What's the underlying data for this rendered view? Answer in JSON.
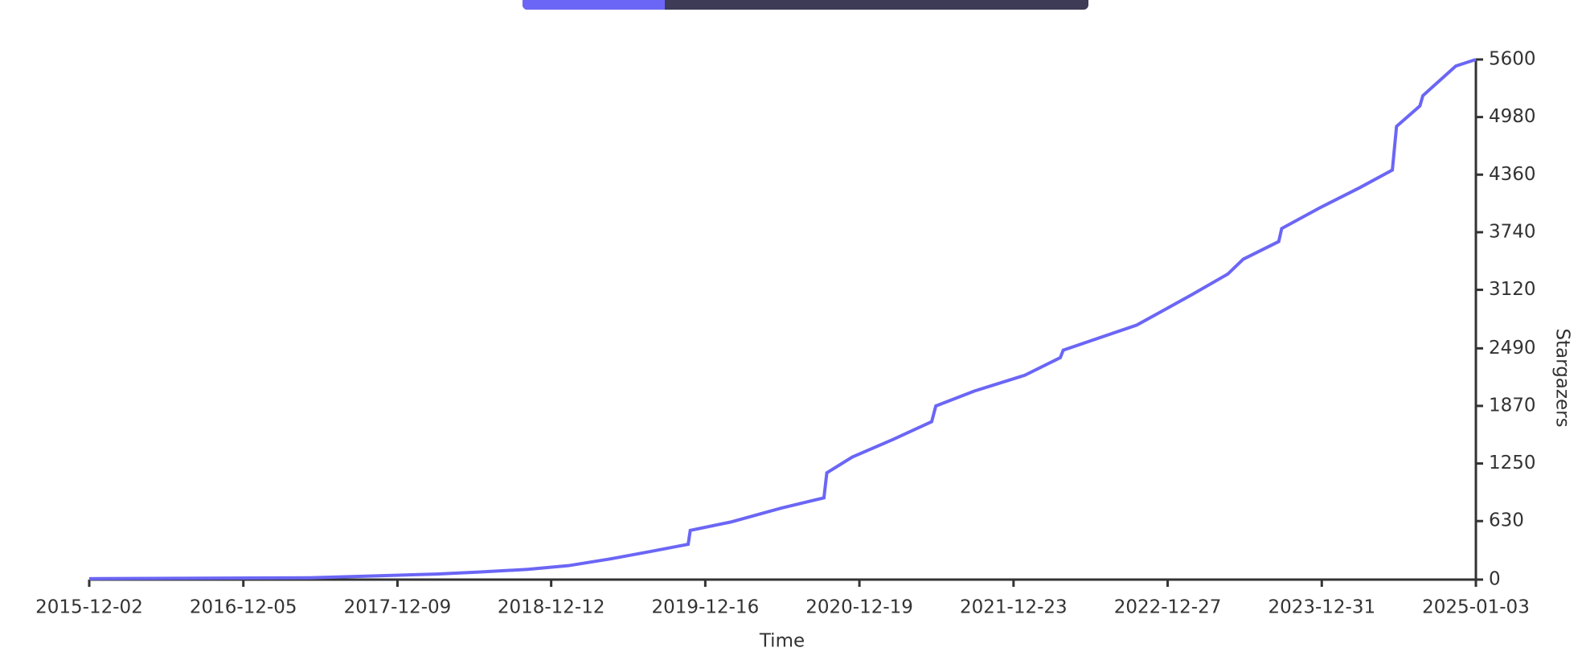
{
  "chart_data": {
    "type": "line",
    "x_label": "Time",
    "y_label": "Stargazers",
    "xlim": [
      "2015-12-02",
      "2025-01-03"
    ],
    "xticks": [
      "2015-12-02",
      "2016-12-05",
      "2017-12-09",
      "2018-12-12",
      "2019-12-16",
      "2020-12-19",
      "2021-12-23",
      "2022-12-27",
      "2023-12-31",
      "2025-01-03"
    ],
    "ylim": [
      0,
      5600
    ],
    "yticks": [
      0,
      630,
      1250,
      1870,
      2490,
      3120,
      3740,
      4360,
      4980,
      5600
    ],
    "series": [
      {
        "name": "Stargazers",
        "color": "#6b66f5",
        "x": [
          "2015-12-02",
          "2017-05-13",
          "2017-10-18",
          "2018-03-12",
          "2018-06-17",
          "2018-10-17",
          "2019-01-22",
          "2019-04-29",
          "2019-08-04",
          "2019-11-05",
          "2019-11-10",
          "2020-02-15",
          "2020-06-15",
          "2020-09-25",
          "2020-10-02",
          "2020-12-02",
          "2021-03-10",
          "2021-06-10",
          "2021-06-20",
          "2021-09-20",
          "2022-01-19",
          "2022-04-14",
          "2022-04-21",
          "2022-10-14",
          "2023-02-24",
          "2023-05-20",
          "2023-06-26",
          "2023-09-19",
          "2023-09-26",
          "2023-12-25",
          "2024-03-31",
          "2024-06-17",
          "2024-06-27",
          "2024-08-22",
          "2024-08-29",
          "2024-11-16",
          "2025-01-03"
        ],
        "values": [
          10,
          20,
          40,
          60,
          80,
          110,
          150,
          220,
          300,
          380,
          530,
          620,
          770,
          880,
          1150,
          1320,
          1510,
          1700,
          1870,
          2030,
          2200,
          2390,
          2470,
          2740,
          3070,
          3290,
          3450,
          3640,
          3780,
          4000,
          4220,
          4410,
          4880,
          5100,
          5210,
          5530,
          5600
        ]
      }
    ]
  }
}
